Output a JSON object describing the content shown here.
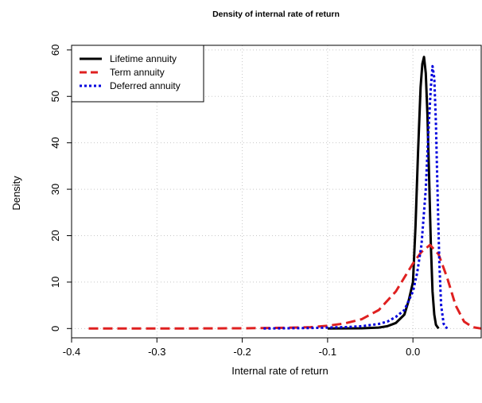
{
  "chart_data": {
    "type": "line",
    "title": "Density of internal rate of return",
    "xlabel": "Internal rate of return",
    "ylabel": "Density",
    "xlim": [
      -0.4,
      0.08
    ],
    "ylim": [
      -2,
      61
    ],
    "x_ticks": [
      -0.4,
      -0.3,
      -0.2,
      -0.1,
      0.0
    ],
    "x_tick_labels": [
      "-0.4",
      "-0.3",
      "-0.2",
      "-0.1",
      "0.0"
    ],
    "y_ticks": [
      0,
      10,
      20,
      30,
      40,
      50,
      60
    ],
    "y_tick_labels": [
      "0",
      "10",
      "20",
      "30",
      "40",
      "50",
      "60"
    ],
    "grid": true,
    "legend_position": "top-left",
    "series": [
      {
        "name": "Lifetime annuity",
        "color": "#000000",
        "style": "solid",
        "x": [
          -0.1,
          -0.06,
          -0.04,
          -0.03,
          -0.02,
          -0.01,
          -0.005,
          0.0,
          0.003,
          0.006,
          0.009,
          0.011,
          0.013,
          0.015,
          0.017,
          0.019,
          0.021,
          0.023,
          0.025,
          0.027,
          0.03
        ],
        "y": [
          0,
          0.05,
          0.2,
          0.5,
          1.2,
          3,
          6,
          10,
          22,
          38,
          52,
          57,
          58.5,
          55,
          46,
          32,
          18,
          8,
          3,
          0.8,
          0
        ]
      },
      {
        "name": "Term annuity",
        "color": "#df2020",
        "style": "dashed",
        "x": [
          -0.38,
          -0.3,
          -0.2,
          -0.15,
          -0.12,
          -0.1,
          -0.08,
          -0.06,
          -0.04,
          -0.02,
          0.0,
          0.01,
          0.02,
          0.03,
          0.04,
          0.05,
          0.06,
          0.07,
          0.08
        ],
        "y": [
          0,
          0,
          0.05,
          0.15,
          0.3,
          0.6,
          1.1,
          2,
          4,
          8,
          14,
          16.5,
          18,
          16,
          11,
          5,
          1.5,
          0.3,
          0
        ]
      },
      {
        "name": "Deferred annuity",
        "color": "#0000dd",
        "style": "dotted",
        "x": [
          -0.175,
          -0.15,
          -0.12,
          -0.1,
          -0.08,
          -0.06,
          -0.04,
          -0.03,
          -0.02,
          -0.01,
          0.0,
          0.005,
          0.01,
          0.015,
          0.018,
          0.021,
          0.023,
          0.025,
          0.027,
          0.029,
          0.031,
          0.033,
          0.036,
          0.04
        ],
        "y": [
          0,
          0.05,
          0.1,
          0.2,
          0.3,
          0.5,
          1.0,
          1.5,
          2.5,
          4,
          8,
          12,
          18,
          30,
          42,
          52,
          56.5,
          54,
          44,
          28,
          14,
          5,
          1,
          0
        ]
      }
    ]
  }
}
